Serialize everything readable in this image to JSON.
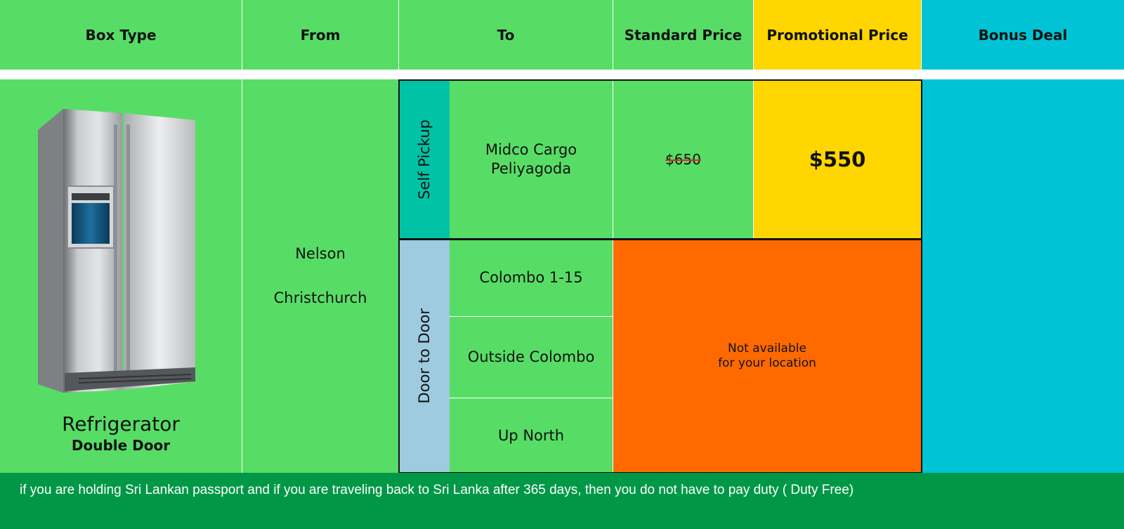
{
  "headers": {
    "box_type": "Box Type",
    "from": "From",
    "to": "To",
    "standard_price": "Standard Price",
    "promotional_price": "Promotional Price",
    "bonus_deal": "Bonus Deal"
  },
  "product": {
    "name": "Refrigerator",
    "variant": "Double Door",
    "image_icon": "refrigerator-image"
  },
  "from": {
    "cities": [
      "Nelson",
      "Christchurch"
    ]
  },
  "delivery": {
    "self_pickup": {
      "label": "Self Pickup",
      "destination_line1": "Midco Cargo",
      "destination_line2": "Peliyagoda",
      "standard_price": "$650",
      "promotional_price": "$550"
    },
    "door_to_door": {
      "label": "Door to Door",
      "destinations": [
        "Colombo 1-15",
        "Outside Colombo",
        "Up North"
      ],
      "notice_line1": "Not available",
      "notice_line2": "for your location"
    }
  },
  "footer": {
    "note": "if you are holding Sri Lankan passport and if you are traveling back to Sri Lanka after 365 days, then you do not have to pay duty ( Duty Free)"
  },
  "colors": {
    "green": "#57dd66",
    "dark_green": "#009846",
    "teal": "#00c4d6",
    "yellow": "#ffd600",
    "orange": "#ff6a00",
    "self_pickup_tag": "#00c3a5",
    "door_tag": "#9ecbe0"
  }
}
